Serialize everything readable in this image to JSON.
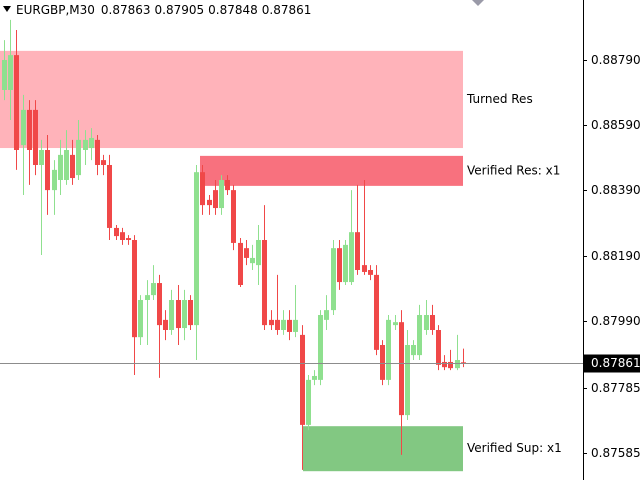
{
  "chart_data": {
    "type": "candlestick",
    "symbol": "EURGBP,M30",
    "ylim": [
      0.87502,
      0.88974
    ],
    "yticks": [
      {
        "value": 0.8879,
        "label": "0.88790"
      },
      {
        "value": 0.8859,
        "label": "0.88590"
      },
      {
        "value": 0.8839,
        "label": "0.88390"
      },
      {
        "value": 0.8819,
        "label": "0.88190"
      },
      {
        "value": 0.8799,
        "label": "0.87990"
      },
      0.87785,
      0.87585
    ],
    "up_color": "#8fe08f",
    "down_color": "#f04848",
    "open": [
      0.88698,
      0.88698,
      0.88805,
      0.88529,
      0.88637,
      0.88637,
      0.88468,
      0.88514,
      0.88391,
      0.88422,
      0.88422,
      0.88499,
      0.88437,
      0.88514,
      0.8852,
      0.88545,
      0.88483,
      0.88468,
      0.88275,
      0.88262,
      0.88244,
      0.88238,
      0.8794,
      0.88054,
      0.88069,
      0.88106,
      0.87993,
      0.87962,
      0.88054,
      0.87968,
      0.88054,
      0.87977,
      0.88446,
      0.88361,
      0.88391,
      0.88336,
      0.88422,
      0.88391,
      0.88229,
      0.88213,
      0.88167,
      0.88161,
      0.88238,
      0.87993,
      0.87993,
      0.87962,
      0.87993,
      0.87956,
      0.87947,
      0.87671,
      0.87809,
      0.87809,
      0.87993,
      0.88023,
      0.88213,
      0.88109,
      0.88109,
      0.88262,
      0.88161,
      0.88146,
      0.88131,
      0.87916,
      0.87809,
      0.87977,
      0.87986,
      0.87701,
      0.87885,
      0.87885,
      0.87962,
      0.88008,
      0.87962,
      0.87864,
      0.87864,
      0.87845,
      0.87863
    ],
    "high": [
      0.88851,
      0.88913,
      0.88882,
      0.88683,
      0.88667,
      0.88667,
      0.88545,
      0.8856,
      0.88483,
      0.88545,
      0.88575,
      0.88545,
      0.88606,
      0.88575,
      0.88581,
      0.8856,
      0.88499,
      0.88499,
      0.88284,
      0.88275,
      0.88253,
      0.88253,
      0.88069,
      0.88115,
      0.88161,
      0.88131,
      0.88023,
      0.88085,
      0.881,
      0.88085,
      0.88069,
      0.88468,
      0.88468,
      0.88376,
      0.88422,
      0.88437,
      0.88437,
      0.88407,
      0.88244,
      0.88238,
      0.88223,
      0.88284,
      0.88345,
      0.88023,
      0.88131,
      0.88023,
      0.88023,
      0.881,
      0.87977,
      0.87824,
      0.87839,
      0.88023,
      0.88069,
      0.88238,
      0.88238,
      0.88238,
      0.88391,
      0.88407,
      0.88422,
      0.88161,
      0.88161,
      0.87931,
      0.88008,
      0.88008,
      0.88023,
      0.87962,
      0.87931,
      0.88039,
      0.88054,
      0.88039,
      0.87977,
      0.87885,
      0.87901,
      0.87947,
      0.87905
    ],
    "low": [
      0.88667,
      0.88606,
      0.88453,
      0.88376,
      0.88407,
      0.88437,
      0.88192,
      0.88315,
      0.88315,
      0.88376,
      0.88407,
      0.88407,
      0.88422,
      0.88468,
      0.88483,
      0.88437,
      0.88437,
      0.88238,
      0.88238,
      0.88223,
      0.88223,
      0.87824,
      0.87916,
      0.87916,
      0.88054,
      0.87815,
      0.87931,
      0.87947,
      0.87916,
      0.87931,
      0.87962,
      0.8787,
      0.88315,
      0.88315,
      0.88315,
      0.88315,
      0.88376,
      0.88207,
      0.88094,
      0.88161,
      0.88146,
      0.881,
      0.87962,
      0.87962,
      0.87947,
      0.87947,
      0.87931,
      0.8794,
      0.87533,
      0.87655,
      0.87793,
      0.87793,
      0.87962,
      0.88008,
      0.88085,
      0.881,
      0.881,
      0.88131,
      0.88131,
      0.88115,
      0.87885,
      0.87793,
      0.87793,
      0.87962,
      0.87579,
      0.87686,
      0.8787,
      0.8787,
      0.87947,
      0.87947,
      0.87839,
      0.87839,
      0.87839,
      0.87839,
      0.87848
    ],
    "close": [
      0.8879,
      0.88805,
      0.88514,
      0.88637,
      0.88514,
      0.88468,
      0.88514,
      0.88391,
      0.88453,
      0.88499,
      0.88514,
      0.88428,
      0.88545,
      0.88545,
      0.88551,
      0.88468,
      0.88468,
      0.88275,
      0.8825,
      0.88238,
      0.88238,
      0.8794,
      0.88054,
      0.88069,
      0.88106,
      0.87977,
      0.87962,
      0.88054,
      0.87968,
      0.88054,
      0.87977,
      0.88446,
      0.88345,
      0.88345,
      0.88336,
      0.88422,
      0.88391,
      0.88229,
      0.881,
      0.88183,
      0.88183,
      0.88238,
      0.87977,
      0.87977,
      0.87962,
      0.87993,
      0.87956,
      0.87993,
      0.87671,
      0.87809,
      0.87821,
      0.88008,
      0.88023,
      0.88213,
      0.88109,
      0.88223,
      0.88262,
      0.88146,
      0.8814,
      0.88131,
      0.87901,
      0.87809,
      0.87993,
      0.87986,
      0.87701,
      0.87916,
      0.87916,
      0.88008,
      0.88008,
      0.87962,
      0.87855,
      0.87848,
      0.87845,
      0.8787,
      0.87861
    ],
    "zones": [
      {
        "name": "Turned Res",
        "top": 0.88818,
        "bottom": 0.8852,
        "color": "#ffb3ba"
      },
      {
        "name": "Verified Res: x1",
        "top": 0.88496,
        "bottom": 0.88404,
        "color": "#f8717e"
      },
      {
        "name": "Verified Sup: x1",
        "top": 0.87667,
        "bottom": 0.87529,
        "color": "#82c882"
      }
    ]
  }
}
